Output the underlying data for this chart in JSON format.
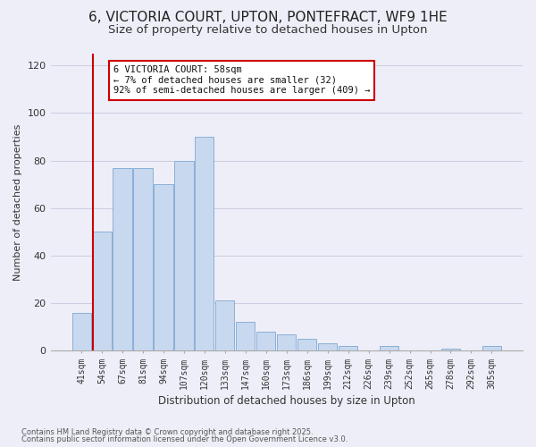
{
  "title": "6, VICTORIA COURT, UPTON, PONTEFRACT, WF9 1HE",
  "subtitle": "Size of property relative to detached houses in Upton",
  "bar_labels": [
    "41sqm",
    "54sqm",
    "67sqm",
    "81sqm",
    "94sqm",
    "107sqm",
    "120sqm",
    "133sqm",
    "147sqm",
    "160sqm",
    "173sqm",
    "186sqm",
    "199sqm",
    "212sqm",
    "226sqm",
    "239sqm",
    "252sqm",
    "265sqm",
    "278sqm",
    "292sqm",
    "305sqm"
  ],
  "bar_values": [
    16,
    50,
    77,
    77,
    70,
    80,
    90,
    21,
    12,
    8,
    7,
    5,
    3,
    2,
    0,
    2,
    0,
    0,
    1,
    0,
    2
  ],
  "bar_color": "#c8d8ee",
  "bar_edge_color": "#8ab0d8",
  "ylabel": "Number of detached properties",
  "xlabel": "Distribution of detached houses by size in Upton",
  "ylim": [
    0,
    125
  ],
  "yticks": [
    0,
    20,
    40,
    60,
    80,
    100,
    120
  ],
  "vline_x_index": 1,
  "vline_color": "#cc0000",
  "annotation_title": "6 VICTORIA COURT: 58sqm",
  "annotation_line1": "← 7% of detached houses are smaller (32)",
  "annotation_line2": "92% of semi-detached houses are larger (409) →",
  "annotation_box_color": "#ffffff",
  "annotation_box_edge": "#cc0000",
  "footer1": "Contains HM Land Registry data © Crown copyright and database right 2025.",
  "footer2": "Contains public sector information licensed under the Open Government Licence v3.0.",
  "bg_color": "#eeeef8",
  "grid_color": "#c8cfe0",
  "title_fontsize": 11,
  "subtitle_fontsize": 9.5
}
